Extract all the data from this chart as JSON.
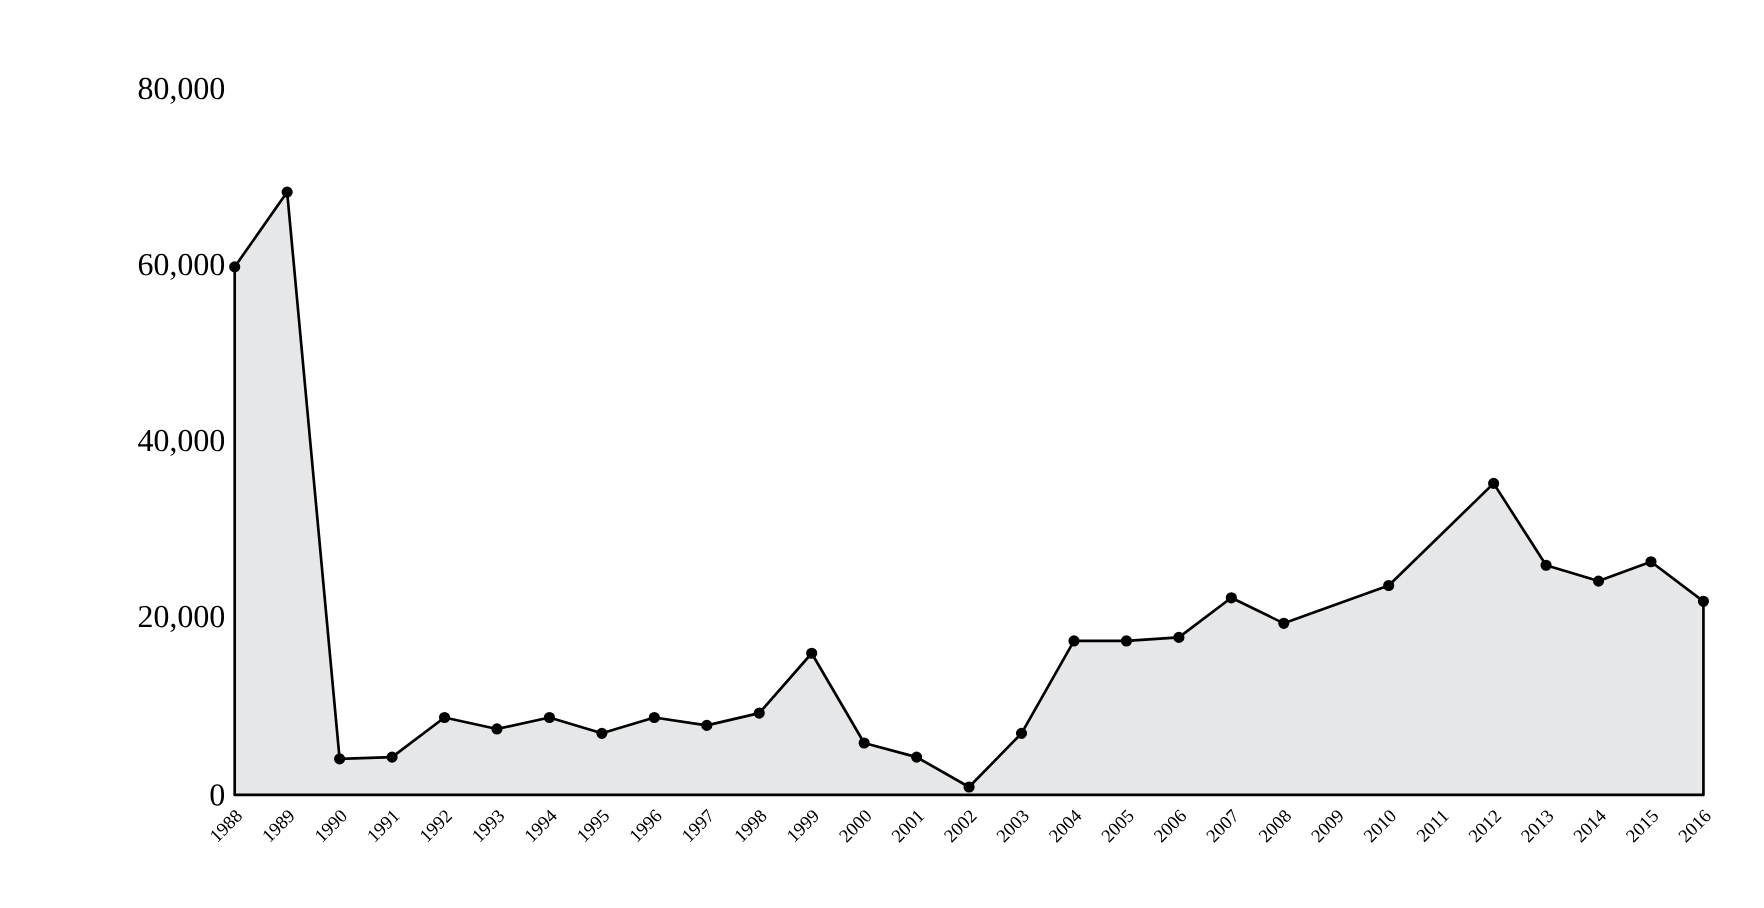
{
  "chart_data": {
    "type": "area",
    "x": [
      1988,
      1989,
      1990,
      1991,
      1992,
      1993,
      1994,
      1995,
      1996,
      1997,
      1998,
      1999,
      2000,
      2001,
      2002,
      2003,
      2004,
      2005,
      2006,
      2007,
      2008,
      2010,
      2012,
      2013,
      2014,
      2015,
      2016
    ],
    "series": [
      {
        "color": "#e6e7e8",
        "values": [
          60000,
          68500,
          4100,
          4300,
          8800,
          7500,
          8800,
          7000,
          8800,
          7900,
          9300,
          16100,
          5900,
          4300,
          900,
          7000,
          17500,
          17500,
          17900,
          22400,
          19500,
          23800,
          35400,
          26100,
          24300,
          26500,
          22000
        ]
      }
    ],
    "xlim": [
      1988,
      2016
    ],
    "xticks": [
      1988,
      1989,
      1990,
      1991,
      1992,
      1993,
      1994,
      1995,
      1996,
      1997,
      1998,
      1999,
      2000,
      2001,
      2002,
      2003,
      2004,
      2005,
      2006,
      2007,
      2008,
      2009,
      2010,
      2011,
      2012,
      2013,
      2014,
      2015,
      2016
    ],
    "ylim": [
      0,
      80000
    ],
    "yticks": [
      {
        "value": 0,
        "label": "0"
      },
      {
        "value": 20000,
        "label": "20,000"
      },
      {
        "value": 40000,
        "label": "40,000"
      },
      {
        "value": 60000,
        "label": "60,000"
      },
      {
        "value": 80000,
        "label": "80,000"
      }
    ],
    "marker": "circle"
  }
}
